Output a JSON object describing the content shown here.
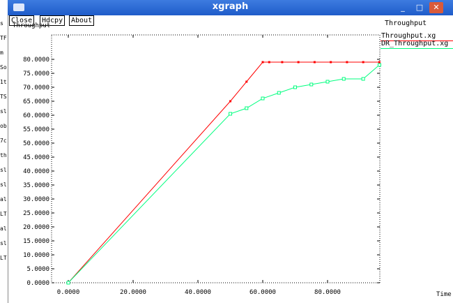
{
  "window": {
    "title": "xgraph"
  },
  "buttons": [
    {
      "label": "Close"
    },
    {
      "label": "Hdcpy"
    },
    {
      "label": "About"
    }
  ],
  "plot_title": "Throughput",
  "y_axis_label_partial": "Throughput",
  "x_axis_unit": "Time",
  "left_strip_fragments": [
    "s",
    "TF",
    "m",
    "So",
    "1t",
    "TS",
    "sl",
    "ob",
    "7c",
    "th",
    "sl",
    "sl",
    "al",
    "LT",
    "al",
    "sl",
    "LT"
  ],
  "legend": [
    {
      "label": "Throughput.xg",
      "color": "#ff0000"
    },
    {
      "label": "DR_Throughput.xg",
      "color": "#00ff7f"
    }
  ],
  "chart_data": {
    "type": "line",
    "title": "Throughput",
    "xlabel": "Time",
    "ylabel": "Throughput",
    "x_ticks": [
      "0.0000",
      "20.0000",
      "40.0000",
      "60.0000",
      "80.0000"
    ],
    "y_ticks": [
      "0.0000",
      "5.0000",
      "10.0000",
      "15.0000",
      "20.0000",
      "25.0000",
      "30.0000",
      "35.0000",
      "40.0000",
      "45.0000",
      "50.0000",
      "55.0000",
      "60.0000",
      "65.0000",
      "70.0000",
      "75.0000",
      "80.0000"
    ],
    "xlim": [
      0,
      100
    ],
    "ylim": [
      0,
      80
    ],
    "grid": false,
    "legend_position": "top-right",
    "series": [
      {
        "name": "Throughput.xg",
        "color": "#ff0000",
        "points": [
          [
            0,
            0
          ],
          [
            50,
            65
          ],
          [
            55,
            72
          ],
          [
            60,
            79
          ],
          [
            62,
            79
          ],
          [
            66,
            79
          ],
          [
            71,
            79
          ],
          [
            76,
            79
          ],
          [
            81,
            79
          ],
          [
            86,
            79
          ],
          [
            91,
            79
          ],
          [
            96,
            79
          ]
        ]
      },
      {
        "name": "DR_Throughput.xg",
        "color": "#00ff7f",
        "points": [
          [
            0,
            0
          ],
          [
            50,
            60.5
          ],
          [
            55,
            62.5
          ],
          [
            60,
            66
          ],
          [
            65,
            68
          ],
          [
            70,
            70
          ],
          [
            75,
            71
          ],
          [
            80,
            72
          ],
          [
            85,
            73
          ],
          [
            91,
            73
          ],
          [
            96,
            78
          ]
        ]
      }
    ]
  }
}
